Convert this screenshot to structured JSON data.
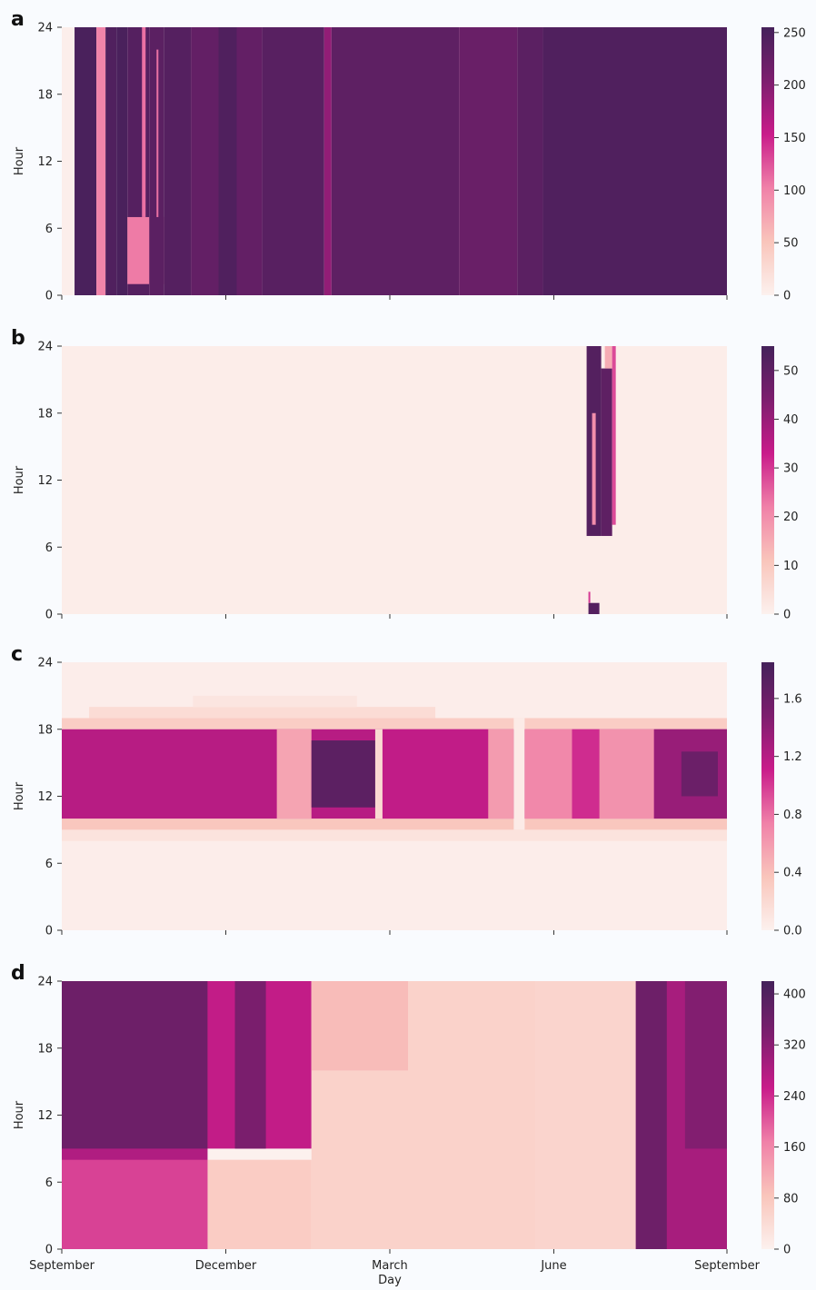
{
  "chart_data": [
    {
      "panel": "a",
      "type": "heatmap",
      "colorbar": {
        "min": 0,
        "max": 255,
        "ticks": [
          0,
          50,
          100,
          150,
          200,
          250
        ]
      },
      "ylabel": "Hour",
      "yticks": [
        0,
        6,
        12,
        18,
        24
      ],
      "ylim": [
        0,
        24
      ],
      "xlim": [
        0,
        365
      ],
      "bands": [
        {
          "x0": 0,
          "x1": 7,
          "y0": 0,
          "y1": 24,
          "v": 3
        },
        {
          "x0": 7,
          "x1": 19,
          "y0": 0,
          "y1": 24,
          "v": 250
        },
        {
          "x0": 19,
          "x1": 24,
          "y0": 0,
          "y1": 24,
          "v": 100
        },
        {
          "x0": 24,
          "x1": 30,
          "y0": 0,
          "y1": 24,
          "v": 245
        },
        {
          "x0": 30,
          "x1": 36,
          "y0": 0,
          "y1": 24,
          "v": 250
        },
        {
          "x0": 36,
          "x1": 48,
          "y0": 0,
          "y1": 24,
          "v": 240
        },
        {
          "x0": 36,
          "x1": 56,
          "y0": 1,
          "y1": 7,
          "v": 105
        },
        {
          "x0": 44,
          "x1": 46,
          "y0": 7,
          "y1": 24,
          "v": 110
        },
        {
          "x0": 48,
          "x1": 56,
          "y0": 0,
          "y1": 24,
          "v": 235
        },
        {
          "x0": 52,
          "x1": 53,
          "y0": 7,
          "y1": 22,
          "v": 110
        },
        {
          "x0": 56,
          "x1": 71,
          "y0": 0,
          "y1": 24,
          "v": 240
        },
        {
          "x0": 71,
          "x1": 110,
          "y0": 0,
          "y1": 24,
          "v": 228
        },
        {
          "x0": 86,
          "x1": 96,
          "y0": 0,
          "y1": 24,
          "v": 245
        },
        {
          "x0": 110,
          "x1": 144,
          "y0": 0,
          "y1": 24,
          "v": 238
        },
        {
          "x0": 144,
          "x1": 148,
          "y0": 0,
          "y1": 24,
          "v": 190
        },
        {
          "x0": 148,
          "x1": 218,
          "y0": 0,
          "y1": 24,
          "v": 232
        },
        {
          "x0": 218,
          "x1": 250,
          "y0": 0,
          "y1": 24,
          "v": 222
        },
        {
          "x0": 250,
          "x1": 264,
          "y0": 0,
          "y1": 24,
          "v": 235
        },
        {
          "x0": 264,
          "x1": 365,
          "y0": 0,
          "y1": 24,
          "v": 245
        }
      ]
    },
    {
      "panel": "b",
      "type": "heatmap",
      "colorbar": {
        "min": 0,
        "max": 55,
        "ticks": [
          0,
          10,
          20,
          30,
          40,
          50
        ]
      },
      "ylabel": "Hour",
      "yticks": [
        0,
        6,
        12,
        18,
        24
      ],
      "ylim": [
        0,
        24
      ],
      "xlim": [
        0,
        365
      ],
      "bands": [
        {
          "x0": 0,
          "x1": 365,
          "y0": 0,
          "y1": 24,
          "v": 1
        },
        {
          "x0": 288,
          "x1": 296,
          "y0": 7,
          "y1": 24,
          "v": 52
        },
        {
          "x0": 291,
          "x1": 293,
          "y0": 8,
          "y1": 18,
          "v": 20
        },
        {
          "x0": 296,
          "x1": 302,
          "y0": 7,
          "y1": 22,
          "v": 50
        },
        {
          "x0": 298,
          "x1": 302,
          "y0": 22,
          "y1": 24,
          "v": 15
        },
        {
          "x0": 302,
          "x1": 304,
          "y0": 8,
          "y1": 24,
          "v": 28
        },
        {
          "x0": 289,
          "x1": 295,
          "y0": 0,
          "y1": 1,
          "v": 52
        },
        {
          "x0": 289,
          "x1": 290,
          "y0": 1,
          "y1": 2,
          "v": 30
        }
      ]
    },
    {
      "panel": "c",
      "type": "heatmap",
      "colorbar": {
        "min": 0,
        "max": 1.85,
        "ticks": [
          0.0,
          0.4,
          0.8,
          1.2,
          1.6
        ]
      },
      "ylabel": "Hour",
      "yticks": [
        0,
        6,
        12,
        18,
        24
      ],
      "ylim": [
        0,
        24
      ],
      "xlim": [
        0,
        365
      ],
      "bands": [
        {
          "x0": 0,
          "x1": 365,
          "y0": 0,
          "y1": 24,
          "v": 0.03
        },
        {
          "x0": 0,
          "x1": 365,
          "y0": 8,
          "y1": 9,
          "v": 0.12
        },
        {
          "x0": 0,
          "x1": 365,
          "y0": 9,
          "y1": 10,
          "v": 0.35
        },
        {
          "x0": 0,
          "x1": 365,
          "y0": 18,
          "y1": 19,
          "v": 0.3
        },
        {
          "x0": 15,
          "x1": 205,
          "y0": 19,
          "y1": 20,
          "v": 0.18
        },
        {
          "x0": 72,
          "x1": 162,
          "y0": 20,
          "y1": 21,
          "v": 0.1
        },
        {
          "x0": 0,
          "x1": 365,
          "y0": 10,
          "y1": 18,
          "v": 1.2
        },
        {
          "x0": 118,
          "x1": 137,
          "y0": 10,
          "y1": 18,
          "v": 0.55
        },
        {
          "x0": 137,
          "x1": 172,
          "y0": 11,
          "y1": 17,
          "v": 1.7
        },
        {
          "x0": 172,
          "x1": 176,
          "y0": 10,
          "y1": 18,
          "v": 0.2
        },
        {
          "x0": 176,
          "x1": 234,
          "y0": 10,
          "y1": 18,
          "v": 1.15
        },
        {
          "x0": 234,
          "x1": 248,
          "y0": 10,
          "y1": 18,
          "v": 0.6
        },
        {
          "x0": 248,
          "x1": 254,
          "y0": 9,
          "y1": 19,
          "v": 0.05
        },
        {
          "x0": 254,
          "x1": 280,
          "y0": 10,
          "y1": 18,
          "v": 0.7
        },
        {
          "x0": 280,
          "x1": 295,
          "y0": 10,
          "y1": 18,
          "v": 1.05
        },
        {
          "x0": 295,
          "x1": 325,
          "y0": 10,
          "y1": 18,
          "v": 0.65
        },
        {
          "x0": 325,
          "x1": 365,
          "y0": 10,
          "y1": 18,
          "v": 1.35
        },
        {
          "x0": 340,
          "x1": 360,
          "y0": 12,
          "y1": 16,
          "v": 1.6
        }
      ]
    },
    {
      "panel": "d",
      "type": "heatmap",
      "colorbar": {
        "min": 0,
        "max": 420,
        "ticks": [
          0,
          80,
          160,
          240,
          320,
          400
        ]
      },
      "ylabel": "Hour",
      "yticks": [
        0,
        6,
        12,
        18,
        24
      ],
      "ylim": [
        0,
        24
      ],
      "xlim": [
        0,
        365
      ],
      "xlabel": "Day",
      "xticks": [
        {
          "pos": 0,
          "label": "September"
        },
        {
          "pos": 90,
          "label": "December"
        },
        {
          "pos": 180,
          "label": "March"
        },
        {
          "pos": 270,
          "label": "June"
        },
        {
          "pos": 365,
          "label": "September"
        }
      ],
      "bands": [
        {
          "x0": 0,
          "x1": 80,
          "y0": 0,
          "y1": 24,
          "v": 280
        },
        {
          "x0": 0,
          "x1": 80,
          "y0": 9,
          "y1": 24,
          "v": 360
        },
        {
          "x0": 0,
          "x1": 80,
          "y0": 0,
          "y1": 8,
          "v": 220
        },
        {
          "x0": 80,
          "x1": 137,
          "y0": 9,
          "y1": 24,
          "v": 260
        },
        {
          "x0": 95,
          "x1": 112,
          "y0": 9,
          "y1": 24,
          "v": 340
        },
        {
          "x0": 80,
          "x1": 137,
          "y0": 0,
          "y1": 8,
          "v": 70
        },
        {
          "x0": 137,
          "x1": 260,
          "y0": 0,
          "y1": 24,
          "v": 60
        },
        {
          "x0": 137,
          "x1": 190,
          "y0": 16,
          "y1": 24,
          "v": 95
        },
        {
          "x0": 260,
          "x1": 315,
          "y0": 0,
          "y1": 24,
          "v": 55
        },
        {
          "x0": 315,
          "x1": 365,
          "y0": 0,
          "y1": 24,
          "v": 290
        },
        {
          "x0": 315,
          "x1": 332,
          "y0": 0,
          "y1": 24,
          "v": 360
        },
        {
          "x0": 342,
          "x1": 365,
          "y0": 9,
          "y1": 24,
          "v": 330
        }
      ]
    }
  ],
  "colors": {
    "scale": [
      "#fcf1ee",
      "#f9c5bb",
      "#f081a8",
      "#c91c8a",
      "#7d1e6e",
      "#45215a"
    ],
    "figure_background": "#f9fbfe"
  }
}
